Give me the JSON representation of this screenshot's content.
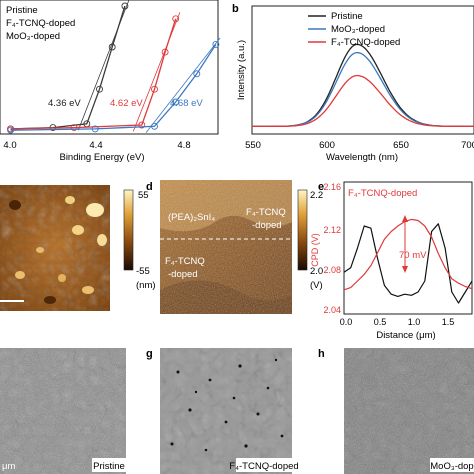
{
  "panel_a": {
    "legend": [
      "Pristine",
      "F₄-TCNQ-doped",
      "MoO₃-doped"
    ],
    "annotations": [
      "4.36 eV",
      "4.62 eV",
      "4.68 eV"
    ],
    "xlabel": "Binding Energy (eV)",
    "xticks": [
      "4.0",
      "4.4",
      "4.8"
    ],
    "colors": {
      "pristine": "#3a3a3a",
      "f4": "#e0393b",
      "moo3": "#3b78c0"
    }
  },
  "panel_b": {
    "letter": "b",
    "legend": [
      "Pristine",
      "MoO₃-doped",
      "F₄-TCNQ-doped"
    ],
    "ylabel": "Intensity (a.u.)",
    "xlabel": "Wavelength (nm)",
    "xticks": [
      "550",
      "600",
      "650",
      "700"
    ]
  },
  "panel_c": {
    "cbar_top": "55",
    "cbar_bottom": "-55",
    "cbar_unit": "(nm)"
  },
  "panel_d": {
    "letter": "d",
    "region_top": "(PEA)₂SnI₄",
    "region_right": [
      "F₄-TCNQ",
      "-doped"
    ],
    "region_left": [
      "F₄-TCNQ",
      "-doped"
    ],
    "cbar_top": "2.2",
    "cbar_bottom": "2.0",
    "cbar_unit": "(V)"
  },
  "panel_e": {
    "letter": "e",
    "legend": "F₄-TCNQ-doped",
    "annotation": "70 mV",
    "ylabel": "CPD (V)",
    "xlabel": "Distance (μm)",
    "yticks": [
      "2.16",
      "2.12",
      "2.08",
      "2.04"
    ],
    "xticks": [
      "0.0",
      "0.5",
      "1.0",
      "1.5"
    ]
  },
  "panel_f": {
    "caption": "Pristine",
    "scale": "μm"
  },
  "panel_g": {
    "letter": "g",
    "caption": "F₄-TCNQ-doped"
  },
  "panel_h": {
    "letter": "h",
    "caption": "MoO₃-dop"
  },
  "chart_data": [
    {
      "type": "line",
      "panel": "a",
      "xlabel": "Binding Energy (eV)",
      "xlim": [
        3.95,
        4.98
      ],
      "series": [
        {
          "name": "Pristine",
          "x": [
            4.0,
            4.2,
            4.36,
            4.42,
            4.48,
            4.54
          ],
          "y": [
            0.04,
            0.05,
            0.08,
            0.35,
            0.68,
            1.0
          ]
        },
        {
          "name": "F₄-TCNQ-doped",
          "x": [
            4.0,
            4.3,
            4.62,
            4.68,
            4.73,
            4.78
          ],
          "y": [
            0.04,
            0.05,
            0.07,
            0.35,
            0.64,
            0.9
          ]
        },
        {
          "name": "MoO₃-doped",
          "x": [
            4.0,
            4.4,
            4.68,
            4.78,
            4.88,
            4.97
          ],
          "y": [
            0.03,
            0.04,
            0.06,
            0.25,
            0.47,
            0.7
          ]
        }
      ]
    },
    {
      "type": "line",
      "panel": "b",
      "xlabel": "Wavelength (nm)",
      "ylabel": "Intensity (a.u.)",
      "xlim": [
        550,
        700
      ],
      "series": [
        {
          "name": "Pristine",
          "peak_x": 621,
          "peak_y": 1.0
        },
        {
          "name": "MoO₃-doped",
          "peak_x": 621,
          "peak_y": 0.9
        },
        {
          "name": "F₄-TCNQ-doped",
          "peak_x": 621,
          "peak_y": 0.62
        }
      ]
    },
    {
      "type": "line",
      "panel": "e",
      "xlabel": "Distance (μm)",
      "ylabel": "CPD (V)",
      "xlim": [
        0.0,
        1.9
      ],
      "ylim": [
        2.04,
        2.16
      ],
      "series": [
        {
          "name": "black",
          "x": [
            0.0,
            0.1,
            0.2,
            0.3,
            0.4,
            0.5,
            0.6,
            0.7,
            0.8,
            0.9,
            1.0,
            1.1,
            1.2,
            1.3,
            1.4,
            1.5,
            1.6,
            1.7,
            1.8,
            1.9
          ],
          "y": [
            2.078,
            2.082,
            2.1,
            2.12,
            2.118,
            2.09,
            2.066,
            2.058,
            2.056,
            2.058,
            2.057,
            2.06,
            2.07,
            2.115,
            2.122,
            2.1,
            2.06,
            2.05,
            2.06,
            2.07
          ]
        },
        {
          "name": "F₄-TCNQ-doped",
          "x": [
            0.0,
            0.1,
            0.2,
            0.3,
            0.4,
            0.5,
            0.6,
            0.7,
            0.8,
            0.9,
            1.0,
            1.1,
            1.2,
            1.3,
            1.4,
            1.5,
            1.6,
            1.7,
            1.8,
            1.9
          ],
          "y": [
            2.062,
            2.064,
            2.07,
            2.076,
            2.084,
            2.096,
            2.108,
            2.115,
            2.12,
            2.124,
            2.126,
            2.125,
            2.12,
            2.11,
            2.095,
            2.082,
            2.072,
            2.068,
            2.065,
            2.063
          ]
        }
      ]
    }
  ]
}
